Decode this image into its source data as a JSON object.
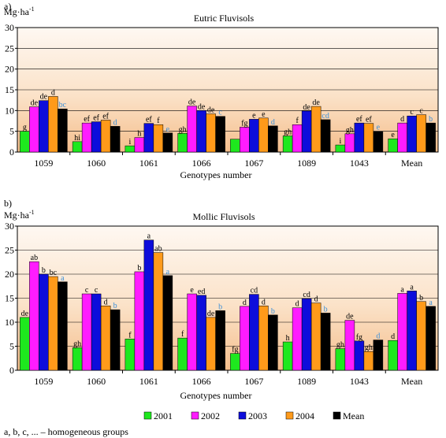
{
  "colors": {
    "2001": "#1ee81e",
    "2002": "#ff1cff",
    "2003": "#0d0ddb",
    "2004": "#ff9a1a",
    "Mean": "#000000",
    "label_default": "#000000",
    "label_blue": "#3b8fd8",
    "label_magenta": "#e020e0",
    "label_teal": "#30b0a0"
  },
  "legend": {
    "items": [
      "2001",
      "2002",
      "2003",
      "2004",
      "Mean"
    ],
    "note": "a, b, c, ... – homogeneous groups"
  },
  "chart_data": [
    {
      "type": "bar",
      "panel_label": "a)",
      "title": "Eutric Fluvisols",
      "ylabel": "Mg·ha",
      "ylabel_sup": "-1",
      "xlabel": "Genotypes number",
      "ylim": [
        0,
        30
      ],
      "yticks": [
        0,
        5,
        10,
        15,
        20,
        25,
        30
      ],
      "categories": [
        "1059",
        "1060",
        "1061",
        "1066",
        "1067",
        "1089",
        "1043",
        "Mean"
      ],
      "series": [
        {
          "name": "2001",
          "values": [
            5.0,
            2.5,
            1.5,
            4.5,
            3.1,
            3.9,
            1.7,
            3.2
          ],
          "labels": [
            "g",
            "hi",
            "i",
            "gh",
            "",
            "gh",
            "i",
            "e"
          ]
        },
        {
          "name": "2002",
          "values": [
            10.9,
            7.0,
            3.5,
            11.1,
            6.0,
            6.6,
            4.4,
            7.0
          ],
          "labels": [
            "de",
            "ef",
            "h",
            "de",
            "fg",
            "f",
            "gh",
            "d"
          ]
        },
        {
          "name": "2003",
          "values": [
            12.4,
            7.3,
            6.9,
            10.0,
            7.9,
            9.9,
            7.0,
            8.7
          ],
          "labels": [
            "de",
            "ef",
            "ef",
            "de",
            "e",
            "de",
            "ef",
            "c"
          ]
        },
        {
          "name": "2004",
          "values": [
            13.4,
            7.7,
            6.6,
            9.2,
            8.2,
            11.0,
            6.9,
            9.0
          ],
          "labels": [
            "d",
            "ef",
            "f",
            "de",
            "e",
            "de",
            "ef",
            "c"
          ]
        },
        {
          "name": "Mean",
          "values": [
            10.4,
            6.2,
            4.6,
            8.6,
            6.3,
            7.8,
            5.0,
            7.0
          ],
          "labels": [
            "bc",
            "d",
            "e",
            "c",
            "d",
            "cd",
            "e",
            "b"
          ]
        }
      ]
    },
    {
      "type": "bar",
      "panel_label": "b)",
      "title": "Mollic Fluvisols",
      "ylabel": "Mg·ha",
      "ylabel_sup": "-1",
      "xlabel": "Genotypes number",
      "ylim": [
        0,
        30
      ],
      "yticks": [
        0,
        5,
        10,
        15,
        20,
        25,
        30
      ],
      "categories": [
        "1059",
        "1060",
        "1061",
        "1066",
        "1067",
        "1089",
        "1043",
        "Mean"
      ],
      "series": [
        {
          "name": "2001",
          "values": [
            11.0,
            4.7,
            6.5,
            6.7,
            3.5,
            5.9,
            4.5,
            6.2
          ],
          "labels": [
            "de",
            "gh",
            "f",
            "f",
            "fg",
            "h",
            "gh",
            "d"
          ]
        },
        {
          "name": "2002",
          "values": [
            22.6,
            15.9,
            20.5,
            15.9,
            13.3,
            13.0,
            10.4,
            16.0
          ],
          "labels": [
            "ab",
            "c",
            "b",
            "e",
            "d",
            "d",
            "de",
            "a"
          ]
        },
        {
          "name": "2003",
          "values": [
            20.0,
            15.9,
            27.1,
            15.6,
            15.8,
            14.9,
            6.1,
            16.5
          ],
          "labels": [
            "b",
            "c",
            "a",
            "ed",
            "cd",
            "cd",
            "fg",
            "a"
          ]
        },
        {
          "name": "2004",
          "values": [
            19.5,
            13.4,
            24.5,
            11.0,
            13.4,
            14.0,
            3.9,
            14.3
          ],
          "labels": [
            "bc",
            "d",
            "ab",
            "de",
            "d",
            "d",
            "gh",
            "b"
          ]
        },
        {
          "name": "Mean",
          "values": [
            18.4,
            12.6,
            19.7,
            12.4,
            11.5,
            11.9,
            6.3,
            13.3
          ],
          "labels": [
            "a",
            "b",
            "a",
            "b",
            "b",
            "b",
            "d",
            "a"
          ]
        }
      ]
    }
  ]
}
